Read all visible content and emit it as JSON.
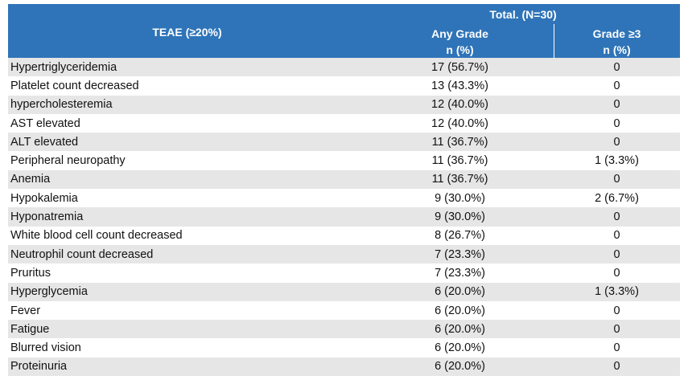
{
  "header": {
    "teae": "TEAE (≥20%)",
    "total": "Total. (N=30)",
    "columns": [
      [
        "Any Grade",
        "n (%)"
      ],
      [
        "Grade ≥3",
        "n (%)"
      ]
    ]
  },
  "table": {
    "rows": [
      [
        "Hypertriglyceridemia",
        "17 (56.7%)",
        "0"
      ],
      [
        "Platelet count decreased",
        "13 (43.3%)",
        "0"
      ],
      [
        "hypercholesteremia",
        "12 (40.0%)",
        "0"
      ],
      [
        "AST elevated",
        "12 (40.0%)",
        "0"
      ],
      [
        "ALT elevated",
        "11 (36.7%)",
        "0"
      ],
      [
        "Peripheral neuropathy",
        "11 (36.7%)",
        "1 (3.3%)"
      ],
      [
        "Anemia",
        "11 (36.7%)",
        "0"
      ],
      [
        "Hypokalemia",
        "9 (30.0%)",
        "2 (6.7%)"
      ],
      [
        "Hyponatremia",
        "9 (30.0%)",
        "0"
      ],
      [
        "White blood cell count decreased",
        "8 (26.7%)",
        "0"
      ],
      [
        "Neutrophil count decreased",
        "7 (23.3%)",
        "0"
      ],
      [
        "Pruritus",
        "7 (23.3%)",
        "0"
      ],
      [
        "Hyperglycemia",
        "6 (20.0%)",
        "1 (3.3%)"
      ],
      [
        "Fever",
        "6 (20.0%)",
        "0"
      ],
      [
        "Fatigue",
        "6 (20.0%)",
        "0"
      ],
      [
        "Blurred vision",
        "6 (20.0%)",
        "0"
      ],
      [
        "Proteinuria",
        "6 (20.0%)",
        "0"
      ]
    ]
  }
}
